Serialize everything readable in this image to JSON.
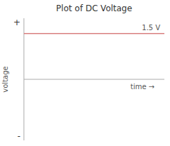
{
  "chart_data": {
    "type": "line",
    "title": "Plot of DC Voltage",
    "x_label": "time →",
    "y_label": "voltage",
    "annotations": [
      "1.5 V",
      "+",
      "-"
    ],
    "x": [
      0,
      10
    ],
    "series": [
      {
        "values": [
          1.5,
          1.5
        ],
        "color": "#d98080"
      }
    ],
    "xlim": [
      0,
      10
    ],
    "ylim": [
      -2,
      2
    ],
    "yticks": [
      0
    ],
    "tick_labels": false,
    "grid": false
  }
}
